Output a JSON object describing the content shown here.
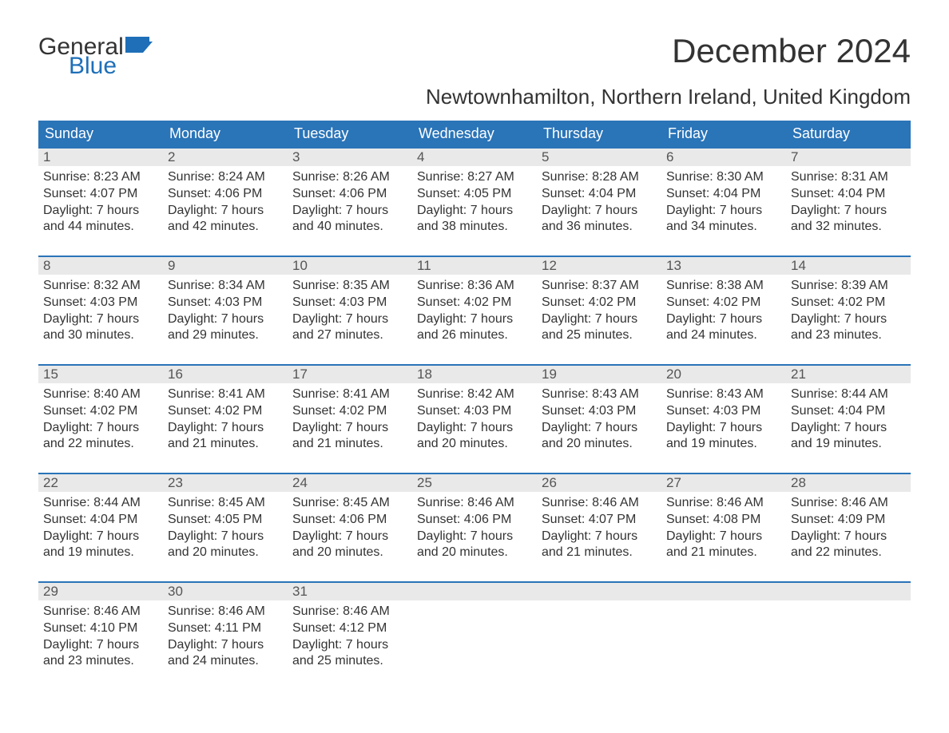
{
  "logo": {
    "part1": "General",
    "part2": "Blue"
  },
  "title": "December 2024",
  "location": "Newtownhamilton, Northern Ireland, United Kingdom",
  "colors": {
    "header_bg": "#2a74b8",
    "header_text": "#ffffff",
    "daynum_bg": "#e9e9e9",
    "daynum_text": "#555555",
    "body_text": "#333333",
    "logo_blue": "#1e6fb8",
    "page_bg": "#ffffff",
    "week_border": "#2a74b8"
  },
  "typography": {
    "title_fontsize": 42,
    "location_fontsize": 26,
    "header_fontsize": 18,
    "daynum_fontsize": 17,
    "body_fontsize": 16,
    "font_family": "Arial"
  },
  "layout": {
    "columns": 7,
    "rows": 5,
    "type": "calendar-grid"
  },
  "weekday_headers": [
    "Sunday",
    "Monday",
    "Tuesday",
    "Wednesday",
    "Thursday",
    "Friday",
    "Saturday"
  ],
  "days": [
    {
      "n": "1",
      "sr": "Sunrise: 8:23 AM",
      "ss": "Sunset: 4:07 PM",
      "d1": "Daylight: 7 hours",
      "d2": "and 44 minutes."
    },
    {
      "n": "2",
      "sr": "Sunrise: 8:24 AM",
      "ss": "Sunset: 4:06 PM",
      "d1": "Daylight: 7 hours",
      "d2": "and 42 minutes."
    },
    {
      "n": "3",
      "sr": "Sunrise: 8:26 AM",
      "ss": "Sunset: 4:06 PM",
      "d1": "Daylight: 7 hours",
      "d2": "and 40 minutes."
    },
    {
      "n": "4",
      "sr": "Sunrise: 8:27 AM",
      "ss": "Sunset: 4:05 PM",
      "d1": "Daylight: 7 hours",
      "d2": "and 38 minutes."
    },
    {
      "n": "5",
      "sr": "Sunrise: 8:28 AM",
      "ss": "Sunset: 4:04 PM",
      "d1": "Daylight: 7 hours",
      "d2": "and 36 minutes."
    },
    {
      "n": "6",
      "sr": "Sunrise: 8:30 AM",
      "ss": "Sunset: 4:04 PM",
      "d1": "Daylight: 7 hours",
      "d2": "and 34 minutes."
    },
    {
      "n": "7",
      "sr": "Sunrise: 8:31 AM",
      "ss": "Sunset: 4:04 PM",
      "d1": "Daylight: 7 hours",
      "d2": "and 32 minutes."
    },
    {
      "n": "8",
      "sr": "Sunrise: 8:32 AM",
      "ss": "Sunset: 4:03 PM",
      "d1": "Daylight: 7 hours",
      "d2": "and 30 minutes."
    },
    {
      "n": "9",
      "sr": "Sunrise: 8:34 AM",
      "ss": "Sunset: 4:03 PM",
      "d1": "Daylight: 7 hours",
      "d2": "and 29 minutes."
    },
    {
      "n": "10",
      "sr": "Sunrise: 8:35 AM",
      "ss": "Sunset: 4:03 PM",
      "d1": "Daylight: 7 hours",
      "d2": "and 27 minutes."
    },
    {
      "n": "11",
      "sr": "Sunrise: 8:36 AM",
      "ss": "Sunset: 4:02 PM",
      "d1": "Daylight: 7 hours",
      "d2": "and 26 minutes."
    },
    {
      "n": "12",
      "sr": "Sunrise: 8:37 AM",
      "ss": "Sunset: 4:02 PM",
      "d1": "Daylight: 7 hours",
      "d2": "and 25 minutes."
    },
    {
      "n": "13",
      "sr": "Sunrise: 8:38 AM",
      "ss": "Sunset: 4:02 PM",
      "d1": "Daylight: 7 hours",
      "d2": "and 24 minutes."
    },
    {
      "n": "14",
      "sr": "Sunrise: 8:39 AM",
      "ss": "Sunset: 4:02 PM",
      "d1": "Daylight: 7 hours",
      "d2": "and 23 minutes."
    },
    {
      "n": "15",
      "sr": "Sunrise: 8:40 AM",
      "ss": "Sunset: 4:02 PM",
      "d1": "Daylight: 7 hours",
      "d2": "and 22 minutes."
    },
    {
      "n": "16",
      "sr": "Sunrise: 8:41 AM",
      "ss": "Sunset: 4:02 PM",
      "d1": "Daylight: 7 hours",
      "d2": "and 21 minutes."
    },
    {
      "n": "17",
      "sr": "Sunrise: 8:41 AM",
      "ss": "Sunset: 4:02 PM",
      "d1": "Daylight: 7 hours",
      "d2": "and 21 minutes."
    },
    {
      "n": "18",
      "sr": "Sunrise: 8:42 AM",
      "ss": "Sunset: 4:03 PM",
      "d1": "Daylight: 7 hours",
      "d2": "and 20 minutes."
    },
    {
      "n": "19",
      "sr": "Sunrise: 8:43 AM",
      "ss": "Sunset: 4:03 PM",
      "d1": "Daylight: 7 hours",
      "d2": "and 20 minutes."
    },
    {
      "n": "20",
      "sr": "Sunrise: 8:43 AM",
      "ss": "Sunset: 4:03 PM",
      "d1": "Daylight: 7 hours",
      "d2": "and 19 minutes."
    },
    {
      "n": "21",
      "sr": "Sunrise: 8:44 AM",
      "ss": "Sunset: 4:04 PM",
      "d1": "Daylight: 7 hours",
      "d2": "and 19 minutes."
    },
    {
      "n": "22",
      "sr": "Sunrise: 8:44 AM",
      "ss": "Sunset: 4:04 PM",
      "d1": "Daylight: 7 hours",
      "d2": "and 19 minutes."
    },
    {
      "n": "23",
      "sr": "Sunrise: 8:45 AM",
      "ss": "Sunset: 4:05 PM",
      "d1": "Daylight: 7 hours",
      "d2": "and 20 minutes."
    },
    {
      "n": "24",
      "sr": "Sunrise: 8:45 AM",
      "ss": "Sunset: 4:06 PM",
      "d1": "Daylight: 7 hours",
      "d2": "and 20 minutes."
    },
    {
      "n": "25",
      "sr": "Sunrise: 8:46 AM",
      "ss": "Sunset: 4:06 PM",
      "d1": "Daylight: 7 hours",
      "d2": "and 20 minutes."
    },
    {
      "n": "26",
      "sr": "Sunrise: 8:46 AM",
      "ss": "Sunset: 4:07 PM",
      "d1": "Daylight: 7 hours",
      "d2": "and 21 minutes."
    },
    {
      "n": "27",
      "sr": "Sunrise: 8:46 AM",
      "ss": "Sunset: 4:08 PM",
      "d1": "Daylight: 7 hours",
      "d2": "and 21 minutes."
    },
    {
      "n": "28",
      "sr": "Sunrise: 8:46 AM",
      "ss": "Sunset: 4:09 PM",
      "d1": "Daylight: 7 hours",
      "d2": "and 22 minutes."
    },
    {
      "n": "29",
      "sr": "Sunrise: 8:46 AM",
      "ss": "Sunset: 4:10 PM",
      "d1": "Daylight: 7 hours",
      "d2": "and 23 minutes."
    },
    {
      "n": "30",
      "sr": "Sunrise: 8:46 AM",
      "ss": "Sunset: 4:11 PM",
      "d1": "Daylight: 7 hours",
      "d2": "and 24 minutes."
    },
    {
      "n": "31",
      "sr": "Sunrise: 8:46 AM",
      "ss": "Sunset: 4:12 PM",
      "d1": "Daylight: 7 hours",
      "d2": "and 25 minutes."
    }
  ]
}
